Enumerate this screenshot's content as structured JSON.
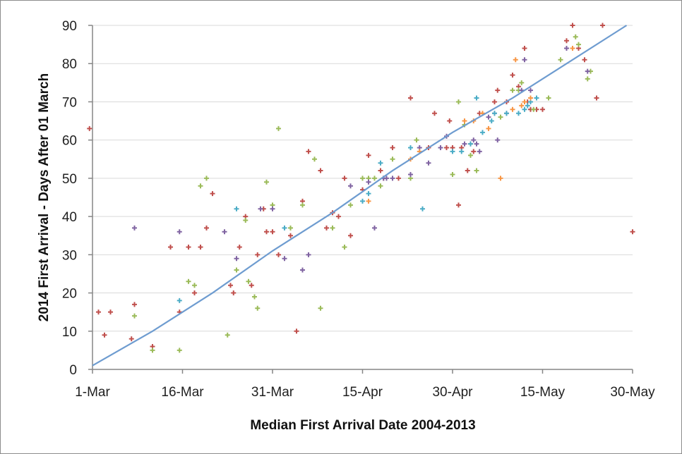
{
  "chart_data": {
    "type": "scatter",
    "title": "",
    "xlabel": "Median First Arrival Date 2004-2013",
    "ylabel": "2014 First Arrival - Days After 01 March",
    "xlim": [
      0,
      90
    ],
    "ylim": [
      0,
      90
    ],
    "x_ticks": [
      {
        "value": 0,
        "label": "1-Mar"
      },
      {
        "value": 15,
        "label": "16-Mar"
      },
      {
        "value": 30,
        "label": "31-Mar"
      },
      {
        "value": 45,
        "label": "15-Apr"
      },
      {
        "value": 60,
        "label": "30-Apr"
      },
      {
        "value": 75,
        "label": "15-May"
      },
      {
        "value": 90,
        "label": "30-May"
      }
    ],
    "y_ticks": [
      0,
      10,
      20,
      30,
      40,
      50,
      60,
      70,
      80,
      90
    ],
    "grid": "horizontal",
    "legend": "none",
    "trend_line": {
      "color": "#6e9cd0",
      "points": [
        [
          0,
          1
        ],
        [
          10,
          10
        ],
        [
          20,
          20
        ],
        [
          30,
          31
        ],
        [
          40,
          41
        ],
        [
          50,
          52
        ],
        [
          60,
          62
        ],
        [
          70,
          71
        ],
        [
          80,
          81
        ],
        [
          89,
          90
        ]
      ]
    },
    "series": [
      {
        "color": "#c0504d",
        "points": [
          [
            -0.5,
            63
          ],
          [
            1,
            15
          ],
          [
            2,
            9
          ],
          [
            3,
            15
          ],
          [
            6.5,
            8
          ],
          [
            7,
            17
          ],
          [
            10,
            6
          ],
          [
            13,
            32
          ],
          [
            14.5,
            15
          ],
          [
            16,
            32
          ],
          [
            17,
            20
          ],
          [
            18,
            32
          ],
          [
            19,
            37
          ],
          [
            20,
            46
          ],
          [
            23,
            22
          ],
          [
            23.5,
            20
          ],
          [
            24.5,
            32
          ],
          [
            25.5,
            40
          ],
          [
            26.5,
            22
          ],
          [
            27.5,
            30
          ],
          [
            28.5,
            42
          ],
          [
            29,
            36
          ],
          [
            30,
            36
          ],
          [
            31,
            30
          ],
          [
            33,
            35
          ],
          [
            34,
            10
          ],
          [
            35,
            44
          ],
          [
            36,
            57
          ],
          [
            38,
            52
          ],
          [
            39,
            37
          ],
          [
            40,
            41
          ],
          [
            41,
            40
          ],
          [
            42,
            50
          ],
          [
            43,
            35
          ],
          [
            45,
            47
          ],
          [
            46,
            56
          ],
          [
            48,
            52
          ],
          [
            48.5,
            50
          ],
          [
            50,
            58
          ],
          [
            51,
            50
          ],
          [
            53,
            71
          ],
          [
            56,
            58
          ],
          [
            57,
            67
          ],
          [
            59,
            58
          ],
          [
            59.5,
            65
          ],
          [
            60,
            58
          ],
          [
            61,
            43
          ],
          [
            61.5,
            58
          ],
          [
            62.5,
            52
          ],
          [
            63,
            59
          ],
          [
            63.5,
            57
          ],
          [
            64.5,
            67
          ],
          [
            67,
            70
          ],
          [
            67.5,
            73
          ],
          [
            69,
            70
          ],
          [
            70,
            77
          ],
          [
            71,
            74
          ],
          [
            72,
            84
          ],
          [
            72.5,
            70
          ],
          [
            73,
            68
          ],
          [
            74,
            68
          ],
          [
            75,
            68
          ],
          [
            79,
            86
          ],
          [
            80,
            90
          ],
          [
            81,
            84
          ],
          [
            82,
            81
          ],
          [
            84,
            71
          ],
          [
            85,
            90
          ],
          [
            90,
            36
          ]
        ]
      },
      {
        "color": "#9bbb59",
        "points": [
          [
            7,
            14
          ],
          [
            10,
            5
          ],
          [
            14.5,
            5
          ],
          [
            16,
            23
          ],
          [
            17,
            22
          ],
          [
            18,
            48
          ],
          [
            19,
            50
          ],
          [
            22.5,
            9
          ],
          [
            24,
            26
          ],
          [
            25.5,
            39
          ],
          [
            26,
            23
          ],
          [
            27,
            19
          ],
          [
            27.5,
            16
          ],
          [
            29,
            49
          ],
          [
            30,
            43
          ],
          [
            31,
            63
          ],
          [
            33,
            37
          ],
          [
            35,
            43
          ],
          [
            37,
            55
          ],
          [
            38,
            16
          ],
          [
            40,
            37
          ],
          [
            42,
            32
          ],
          [
            43,
            43
          ],
          [
            45,
            50
          ],
          [
            46,
            50
          ],
          [
            47,
            50
          ],
          [
            48,
            48
          ],
          [
            50,
            55
          ],
          [
            53,
            50
          ],
          [
            54,
            60
          ],
          [
            60,
            51
          ],
          [
            61,
            70
          ],
          [
            62,
            64
          ],
          [
            63,
            56
          ],
          [
            64,
            52
          ],
          [
            68,
            66
          ],
          [
            70,
            73
          ],
          [
            71,
            73
          ],
          [
            71.5,
            75
          ],
          [
            73.5,
            68
          ],
          [
            76,
            71
          ],
          [
            78,
            81
          ],
          [
            80.5,
            87
          ],
          [
            81,
            85
          ],
          [
            82.5,
            76
          ],
          [
            83,
            78
          ]
        ]
      },
      {
        "color": "#8064a2",
        "points": [
          [
            7,
            37
          ],
          [
            14.5,
            36
          ],
          [
            22,
            36
          ],
          [
            24,
            29
          ],
          [
            28,
            42
          ],
          [
            30,
            42
          ],
          [
            32,
            29
          ],
          [
            35,
            26
          ],
          [
            36,
            30
          ],
          [
            43,
            48
          ],
          [
            46,
            49
          ],
          [
            47,
            37
          ],
          [
            48.5,
            50
          ],
          [
            49,
            50
          ],
          [
            50,
            50
          ],
          [
            53,
            51
          ],
          [
            54.5,
            58
          ],
          [
            56,
            54
          ],
          [
            58,
            58
          ],
          [
            59,
            61
          ],
          [
            62,
            59
          ],
          [
            63.5,
            60
          ],
          [
            64,
            59
          ],
          [
            64.5,
            57
          ],
          [
            66,
            66
          ],
          [
            67,
            67
          ],
          [
            67.5,
            60
          ],
          [
            69,
            67
          ],
          [
            71.5,
            73
          ],
          [
            72,
            81
          ],
          [
            73,
            73
          ],
          [
            79,
            84
          ],
          [
            82.5,
            78
          ]
        ]
      },
      {
        "color": "#4bacc6",
        "points": [
          [
            14.5,
            18
          ],
          [
            24,
            42
          ],
          [
            32,
            37
          ],
          [
            45,
            44
          ],
          [
            46,
            46
          ],
          [
            48,
            54
          ],
          [
            53,
            58
          ],
          [
            55,
            42
          ],
          [
            60,
            57
          ],
          [
            61.5,
            57
          ],
          [
            63,
            59
          ],
          [
            64,
            71
          ],
          [
            65,
            62
          ],
          [
            66.5,
            65
          ],
          [
            67,
            67
          ],
          [
            69,
            67
          ],
          [
            71,
            67
          ],
          [
            72,
            68
          ],
          [
            72.5,
            69
          ],
          [
            73,
            70
          ],
          [
            74,
            71
          ]
        ]
      },
      {
        "color": "#f79646",
        "points": [
          [
            46,
            44
          ],
          [
            53,
            55
          ],
          [
            54.5,
            57
          ],
          [
            62,
            65
          ],
          [
            63.5,
            65
          ],
          [
            65,
            67
          ],
          [
            66,
            63
          ],
          [
            68,
            50
          ],
          [
            70,
            68
          ],
          [
            70.5,
            81
          ],
          [
            71.5,
            69
          ],
          [
            72,
            70
          ],
          [
            73,
            71
          ],
          [
            80,
            84
          ]
        ]
      }
    ]
  }
}
